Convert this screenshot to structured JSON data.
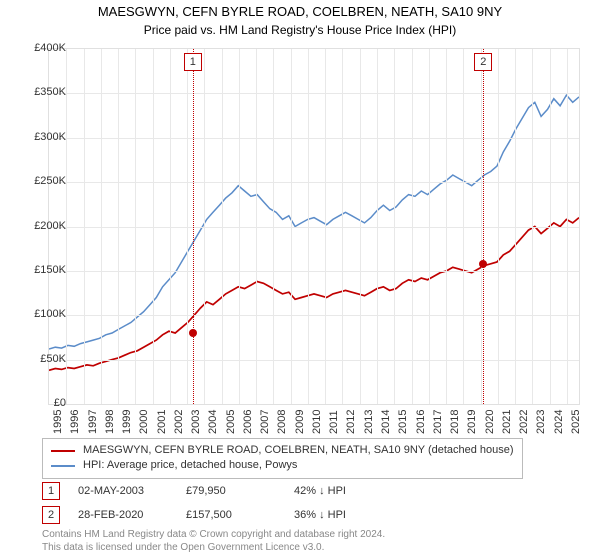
{
  "title": "MAESGWYN, CEFN BYRLE ROAD, COELBREN, NEATH, SA10 9NY",
  "subtitle": "Price paid vs. HM Land Registry's House Price Index (HPI)",
  "chart": {
    "type": "line",
    "background_color": "#ffffff",
    "grid_color": "#e8e8e8",
    "border_color": "#e0e0e0",
    "ylim": [
      0,
      400000
    ],
    "ytick_step": 50000,
    "yticks": [
      "£0",
      "£50K",
      "£100K",
      "£150K",
      "£200K",
      "£250K",
      "£300K",
      "£350K",
      "£400K"
    ],
    "x_min_year": 1995,
    "x_max_year": 2025.7,
    "xticks": [
      "1995",
      "1996",
      "1997",
      "1998",
      "1999",
      "2000",
      "2001",
      "2002",
      "2003",
      "2004",
      "2005",
      "2006",
      "2007",
      "2008",
      "2009",
      "2010",
      "2011",
      "2012",
      "2013",
      "2014",
      "2015",
      "2016",
      "2017",
      "2018",
      "2019",
      "2020",
      "2021",
      "2022",
      "2023",
      "2024",
      "2025"
    ],
    "series": [
      {
        "name": "MAESGWYN, CEFN BYRLE ROAD, COELBREN, NEATH, SA10 9NY (detached house)",
        "color": "#c00000",
        "width": 1.7,
        "points_y": [
          38,
          40,
          39,
          41,
          40,
          42,
          44,
          43,
          46,
          48,
          50,
          52,
          55,
          58,
          60,
          64,
          68,
          72,
          78,
          82,
          80,
          86,
          92,
          100,
          108,
          115,
          112,
          118,
          124,
          128,
          132,
          130,
          134,
          138,
          136,
          132,
          128,
          124,
          126,
          118,
          120,
          122,
          124,
          122,
          120,
          124,
          126,
          128,
          126,
          124,
          122,
          126,
          130,
          132,
          128,
          130,
          136,
          140,
          138,
          142,
          140,
          144,
          148,
          150,
          154,
          152,
          150,
          148,
          152,
          156,
          158,
          160,
          168,
          172,
          180,
          188,
          196,
          200,
          192,
          198,
          204,
          200,
          208,
          204,
          210
        ]
      },
      {
        "name": "HPI: Average price, detached house, Powys",
        "color": "#5b8cc9",
        "width": 1.5,
        "points_y": [
          62,
          64,
          63,
          66,
          65,
          68,
          70,
          72,
          74,
          78,
          80,
          84,
          88,
          92,
          98,
          104,
          112,
          120,
          132,
          140,
          148,
          160,
          172,
          184,
          196,
          208,
          216,
          224,
          232,
          238,
          246,
          240,
          234,
          236,
          228,
          220,
          216,
          208,
          212,
          200,
          204,
          208,
          210,
          206,
          202,
          208,
          212,
          216,
          212,
          208,
          204,
          210,
          218,
          224,
          218,
          222,
          230,
          236,
          234,
          240,
          236,
          242,
          248,
          252,
          258,
          254,
          250,
          246,
          252,
          258,
          262,
          268,
          284,
          296,
          310,
          322,
          334,
          340,
          324,
          332,
          344,
          336,
          348,
          340,
          346
        ]
      }
    ],
    "events": [
      {
        "id": "1",
        "year": 2003.33,
        "date": "02-MAY-2003",
        "price": "£79,950",
        "diff": "42% ↓ HPI",
        "y_value": 79950,
        "box_color": "#c00000",
        "line_color": "#c00000"
      },
      {
        "id": "2",
        "year": 2020.16,
        "date": "28-FEB-2020",
        "price": "£157,500",
        "diff": "36% ↓ HPI",
        "y_value": 157500,
        "box_color": "#c00000",
        "line_color": "#c00000"
      }
    ]
  },
  "legend": {
    "border_color": "#bbbbbb"
  },
  "footer": {
    "line1": "Contains HM Land Registry data © Crown copyright and database right 2024.",
    "line2": "This data is licensed under the Open Government Licence v3.0.",
    "color": "#888888"
  },
  "fonts": {
    "title_size": 13,
    "subtitle_size": 12,
    "tick_size": 11,
    "legend_size": 11,
    "footer_size": 10
  }
}
